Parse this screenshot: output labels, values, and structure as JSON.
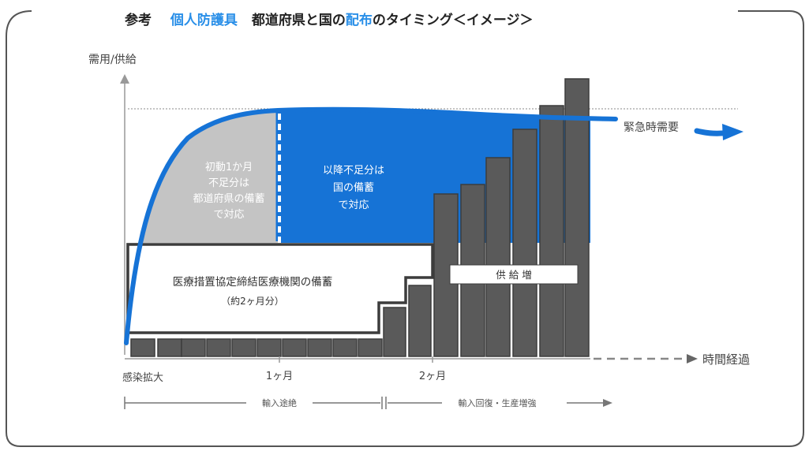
{
  "header": {
    "prefix": "参考",
    "topic": "個人防護具",
    "title_part1": "都道府県と国の",
    "title_highlight": "配布",
    "title_part2": "のタイミング＜イメージ＞"
  },
  "axes": {
    "y_label": "需用/供給",
    "x_label": "時間経過",
    "ticks": [
      "感染拡大",
      "1ヶ月",
      "2ヶ月"
    ]
  },
  "curve_label": "緊急時需要",
  "regions": {
    "prefecture": [
      "初動1か月",
      "不足分は",
      "都道府県の備蓄",
      "で対応"
    ],
    "national": [
      "以降不足分は",
      "国の備蓄",
      "で対応"
    ]
  },
  "stock_box": {
    "line1": "医療措置協定締結医療機関の備蓄",
    "line2": "（約2ヶ月分）"
  },
  "supply_label": "供 給 増",
  "timeline": {
    "phase1": "輸入途絶",
    "phase2": "輸入回復・生産増強"
  },
  "colors": {
    "accent_blue": "#1673d6",
    "header_blue": "#2a8fe8",
    "prefecture_gray": "#c4c4c4",
    "bar_gray": "#5a5a5a",
    "outline_dark": "#3c3c3c"
  }
}
